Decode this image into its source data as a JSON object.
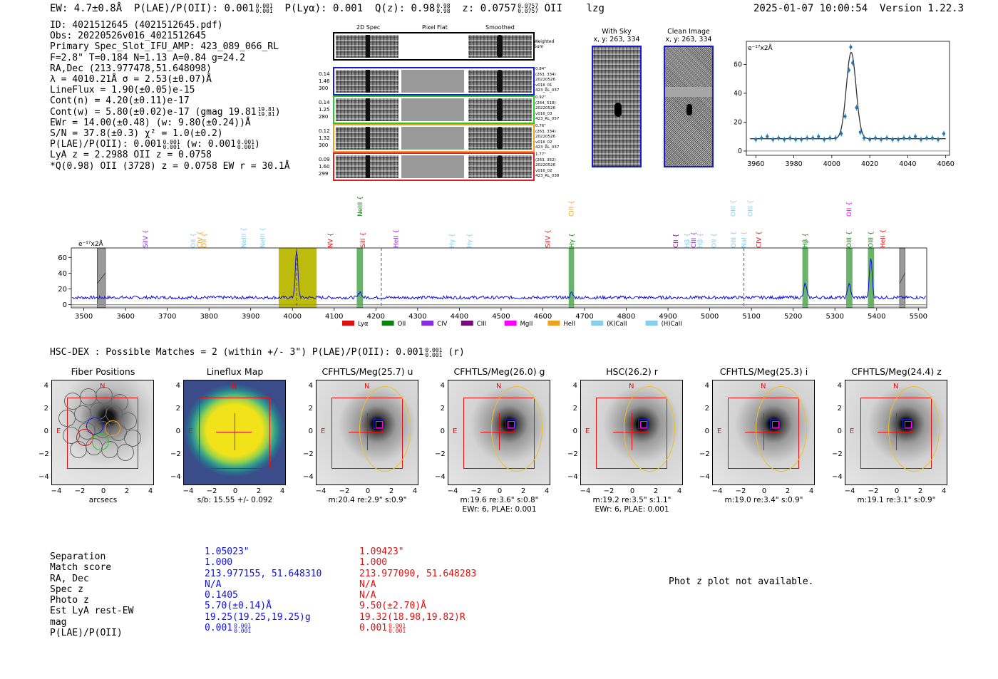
{
  "header": {
    "ew": "EW: 4.7±0.8Å",
    "plae": "P(LAE)/P(OII): 0.001",
    "plae_hi": "0.001",
    "plae_lo": "0.001",
    "plya": "P(Lyα): 0.001",
    "qz": "Q(z): 0.98",
    "qz_hi": "0.98",
    "qz_lo": "0.98",
    "z": "z: 0.0757",
    "z_hi": "0.0757",
    "z_lo": "0.0757",
    "line": "OII",
    "tag": "lzg",
    "timestamp": "2025-01-07 10:00:54",
    "version": "Version 1.22.3"
  },
  "meta": {
    "lines": [
      "ID: 4021512645 (4021512645.pdf)",
      "Obs: 20220526v016_4021512645",
      "Primary Spec_Slot_IFU_AMP: 423_089_066_RL",
      "F=2.8\"  T=0.184  N=1.13  A=0.84  g=24.2",
      "RA,Dec (213.977478,51.648098)",
      "λ = 4010.21Å  σ = 2.53(±0.07)Å",
      "LineFlux = 1.90(±0.05)e-15",
      "Cont(n) = 4.20(±0.11)e-17",
      "Cont(w) = 5.80(±0.02)e-17 (gmag 19.81",
      "EWr = 14.00(±0.48) (w: 9.80(±0.24))Å",
      "S/N = 37.8(±0.3)  χ² = 1.0(±0.2)",
      "P(LAE)/P(OII): 0.001",
      "LyA z = 2.2988  OII z = 0.0758",
      "*Q(0.98) OII (3728) z = 0.0758  EW r = 30.1Å"
    ],
    "gmag_frac": [
      "19.81",
      "19.81"
    ],
    "plae_frac": [
      "0.001",
      "0.001"
    ],
    "plae_w_text": "(w: 0.001",
    "plae_w_frac": [
      "0.001",
      "0.001"
    ]
  },
  "spec2d": {
    "col_titles": [
      "2D Spec",
      "Pixel Flat",
      "Smoothed"
    ],
    "weighted_sum_label": "Weighted\nSum",
    "rows": [
      {
        "color": "#1a1ad0",
        "left": [
          "0.14",
          "1.46",
          "300"
        ],
        "right": [
          "0.84\"",
          "(263, 334)",
          "20220526",
          "v016_01",
          "423_RL_037"
        ]
      },
      {
        "color": "#22cc22",
        "left": [
          "0.14",
          "1.25",
          "280"
        ],
        "right": [
          "0.92\"",
          "(264, 518)",
          "20220526",
          "v016_03",
          "423_RL_057"
        ]
      },
      {
        "color": "#f0a020",
        "left": [
          "0.12",
          "1.32",
          "300"
        ],
        "right": [
          "0.76\"",
          "(263, 334)",
          "20220526",
          "v016_02",
          "423_RL_037"
        ]
      },
      {
        "color": "#e02020",
        "left": [
          "0.09",
          "1.60",
          "299"
        ],
        "right": [
          "1.77\"",
          "(263, 352)",
          "20220526",
          "v016_02",
          "423_RL_038"
        ]
      }
    ]
  },
  "cutouts": {
    "with_sky_title": "With Sky",
    "with_sky_xy": "x, y: 263, 334",
    "clean_title": "Clean Image",
    "clean_xy": "x, y: 263, 334"
  },
  "zoom_plot": {
    "unit_label": "e⁻¹⁷x2Å",
    "x_ticks": [
      "3960",
      "3980",
      "4000",
      "4020",
      "4040",
      "4060"
    ],
    "y_ticks": [
      "0",
      "20",
      "40",
      "60"
    ]
  },
  "chart_data": [
    {
      "type": "scatter",
      "title": "",
      "xlabel": "",
      "ylabel": "e-17 x2Å",
      "xlim": [
        3955,
        4062
      ],
      "ylim": [
        -3,
        76
      ],
      "x": [
        3960,
        3963,
        3966,
        3969,
        3972,
        3975,
        3978,
        3981,
        3984,
        3987,
        3990,
        3993,
        3996,
        3999,
        4002,
        4005,
        4007,
        4009,
        4010,
        4011,
        4013,
        4015,
        4017,
        4020,
        4023,
        4026,
        4029,
        4032,
        4035,
        4038,
        4041,
        4044,
        4047,
        4050,
        4053,
        4056,
        4059
      ],
      "y": [
        8,
        9,
        10,
        8,
        9,
        8,
        9,
        8,
        8,
        9,
        9,
        10,
        8,
        9,
        9,
        12,
        24,
        56,
        72,
        61,
        30,
        13,
        9,
        8,
        9,
        8,
        9,
        8,
        8,
        9,
        9,
        10,
        8,
        9,
        9,
        8,
        12
      ],
      "fit_model": "gaussian",
      "fit_center": 4010.21,
      "fit_sigma": 2.53,
      "fit_continuum": 8.5,
      "fit_amplitude": 60
    },
    {
      "type": "line",
      "title": "",
      "ylabel": "e-17 x2Å",
      "xlim": [
        3470,
        5520
      ],
      "ylim": [
        -4,
        72
      ],
      "x_ticks": [
        3500,
        3600,
        3700,
        3800,
        3900,
        4000,
        4100,
        4200,
        4300,
        4400,
        4500,
        4600,
        4700,
        4800,
        4900,
        5000,
        5100,
        5200,
        5300,
        5400,
        5500
      ],
      "y_ticks": [
        0,
        20,
        40,
        60
      ],
      "continuum": 9,
      "peaks": [
        {
          "x": 4010,
          "y": 68
        },
        {
          "x": 4162,
          "y": 17
        },
        {
          "x": 4669,
          "y": 15
        },
        {
          "x": 5229,
          "y": 27
        },
        {
          "x": 5334,
          "y": 28
        },
        {
          "x": 5386,
          "y": 60
        }
      ],
      "highlight_bands": [
        {
          "x0": 3967,
          "x1": 4058,
          "color": "#b9b800"
        },
        {
          "x0": 4154,
          "x1": 4169,
          "color": "#46a046"
        },
        {
          "x0": 4662,
          "x1": 4675,
          "color": "#46a046"
        },
        {
          "x0": 5222,
          "x1": 5236,
          "color": "#46a046"
        },
        {
          "x0": 5327,
          "x1": 5342,
          "color": "#46a046"
        },
        {
          "x0": 5379,
          "x1": 5394,
          "color": "#46a046"
        }
      ],
      "masked_bands": [
        {
          "x0": 3532,
          "x1": 3552
        },
        {
          "x0": 5455,
          "x1": 5468
        }
      ],
      "dashed_lines": [
        4010,
        4213,
        5082
      ],
      "legend": [
        "Lyα",
        "OII",
        "CIV",
        "CIII",
        "MgII",
        "HeII",
        "(K)CaII",
        "(H)CaII"
      ],
      "legend_colors": [
        "#e01010",
        "#108010",
        "#8a2be2",
        "#7a0a7a",
        "#ff00ff",
        "#f0a020",
        "#87ceeb",
        "#87ceeb"
      ]
    }
  ],
  "full_spec": {
    "unit_label": "e⁻¹⁷x2Å",
    "line_labels": [
      {
        "text": "SiIV",
        "x": 3648,
        "row": 2,
        "color": "#8a2be2"
      },
      {
        "text": "OII",
        "x": 3762,
        "row": 2,
        "color": "#87ceeb"
      },
      {
        "text": "CIV",
        "x": 3778,
        "row": 2,
        "color": "#f0a020"
      },
      {
        "text": "OII",
        "x": 3789,
        "row": 2,
        "color": "#f0a020"
      },
      {
        "text": "NeIII",
        "x": 3883,
        "row": 2,
        "color": "#87ceeb"
      },
      {
        "text": "NeIII",
        "x": 3929,
        "row": 2,
        "color": "#87ceeb"
      },
      {
        "text": "NV",
        "x": 4091,
        "row": 2,
        "color": "#e01010"
      },
      {
        "text": "NeIII",
        "x": 4162,
        "row": 1,
        "color": "#108010"
      },
      {
        "text": "SiII",
        "x": 4169,
        "row": 2,
        "color": "#e01010"
      },
      {
        "text": "HeII",
        "x": 4248,
        "row": 2,
        "color": "#8a2be2"
      },
      {
        "text": "Hγ",
        "x": 4382,
        "row": 2,
        "color": "#87ceeb"
      },
      {
        "text": "Hγ",
        "x": 4424,
        "row": 2,
        "color": "#87ceeb"
      },
      {
        "text": "SiIV",
        "x": 4612,
        "row": 2,
        "color": "#e01010"
      },
      {
        "text": "CIII",
        "x": 4668,
        "row": 1,
        "color": "#f0a020"
      },
      {
        "text": "Hγ",
        "x": 4669,
        "row": 2,
        "color": "#108010"
      },
      {
        "text": "CII",
        "x": 4919,
        "row": 2,
        "color": "#7a0a7a"
      },
      {
        "text": "Hβ",
        "x": 4946,
        "row": 2,
        "color": "#87ceeb"
      },
      {
        "text": "CIII",
        "x": 4961,
        "row": 2,
        "color": "#8a2be2"
      },
      {
        "text": "Hβ",
        "x": 4977,
        "row": 2,
        "color": "#87ceeb"
      },
      {
        "text": "OII",
        "x": 5010,
        "row": 2,
        "color": "#87ceeb"
      },
      {
        "text": "OIII",
        "x": 5056,
        "row": 1,
        "color": "#87ceeb"
      },
      {
        "text": "OIII",
        "x": 5057,
        "row": 2,
        "color": "#87ceeb"
      },
      {
        "text": "NaI",
        "x": 5082,
        "row": 2,
        "color": "#87ceeb"
      },
      {
        "text": "OIII",
        "x": 5097,
        "row": 1,
        "color": "#87ceeb"
      },
      {
        "text": "CIV",
        "x": 5118,
        "row": 2,
        "color": "#e01010"
      },
      {
        "text": "Hβ",
        "x": 5229,
        "row": 2,
        "color": "#108010"
      },
      {
        "text": "OII",
        "x": 5334,
        "row": 1,
        "color": "#ff00ff"
      },
      {
        "text": "OIII",
        "x": 5334,
        "row": 2,
        "color": "#108010"
      },
      {
        "text": "OIII",
        "x": 5386,
        "row": 2,
        "color": "#108010"
      },
      {
        "text": "HeII",
        "x": 5415,
        "row": 2,
        "color": "#e01010"
      }
    ]
  },
  "hsc": {
    "headline": "HSC-DEX : Possible Matches = 2 (within +/- 3\")  P(LAE)/P(OII): 0.001",
    "headline_frac": [
      "0.001",
      "0.001"
    ],
    "headline_tail": "(r)",
    "panels": [
      {
        "title": "Fiber Positions",
        "caption": "arcsecs",
        "caption2": ""
      },
      {
        "title": "Lineflux Map",
        "caption": "s/b: 15.55 +/- 0.092",
        "caption2": ""
      },
      {
        "title": "CFHTLS/Meg(25.7) u",
        "caption": "m:20.4  re:2.9\"  s:0.9\"",
        "caption2": ""
      },
      {
        "title": "CFHTLS/Meg(26.0) g",
        "caption": "m:19.6  re:3.6\"  s:0.8\"",
        "caption2": "EWr: 6, PLAE: 0.001"
      },
      {
        "title": "HSC(26.2) r",
        "caption": "m:19.2  re:3.5\"  s:1.1\"",
        "caption2": "EWr: 6, PLAE: 0.001"
      },
      {
        "title": "CFHTLS/Meg(25.3) i",
        "caption": "m:19.0  re:3.4\"  s:0.9\"",
        "caption2": ""
      },
      {
        "title": "CFHTLS/Meg(24.4) z",
        "caption": "m:19.1  re:3.1\"  s:0.9\"",
        "caption2": ""
      }
    ],
    "axis_ticks": [
      "4",
      "2",
      "0",
      "−2",
      "−4"
    ],
    "x_ticks": [
      "−4",
      "−2",
      "0",
      "2",
      "4"
    ],
    "n_label": "N",
    "e_label": "E"
  },
  "match_table": {
    "labels": [
      "Separation",
      "Match score",
      "RA, Dec",
      "Spec z",
      "Photo z",
      "Est LyA rest-EW",
      "mag",
      "P(LAE)/P(OII)"
    ],
    "col1": [
      "1.05023\"",
      "1.000",
      "213.977155, 51.648310",
      "N/A",
      "0.1405",
      "5.70(±0.14)Å",
      "19.25(19.25,19.25)g",
      "0.001"
    ],
    "col1_frac": [
      "0.001",
      "0.001"
    ],
    "col2": [
      "1.09423\"",
      "1.000",
      "213.977090, 51.648283",
      "N/A",
      "N/A",
      "9.50(±2.70)Å",
      "19.32(18.98,19.82)R",
      "0.001"
    ],
    "col2_frac": [
      "0.001",
      "0.001"
    ],
    "phot_z_msg": "Phot z plot not available."
  }
}
